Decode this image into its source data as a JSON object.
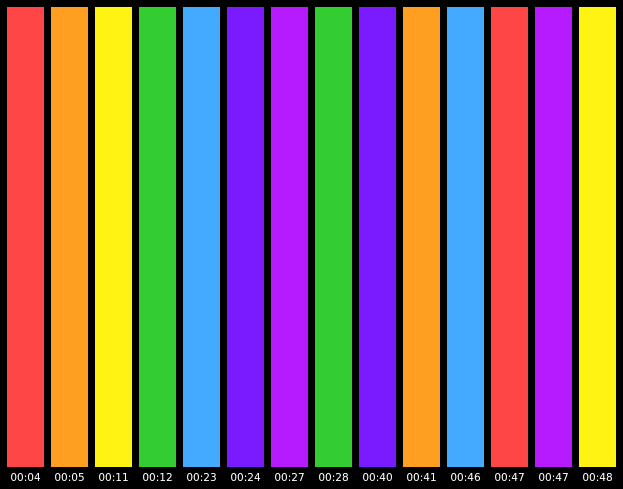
{
  "items": [
    {
      "label": "00:04",
      "color": "#ff4646"
    },
    {
      "label": "00:05",
      "color": "#ff9f22"
    },
    {
      "label": "00:11",
      "color": "#fff314"
    },
    {
      "label": "00:12",
      "color": "#33cc33"
    },
    {
      "label": "00:23",
      "color": "#44aaff"
    },
    {
      "label": "00:24",
      "color": "#7a1aff"
    },
    {
      "label": "00:27",
      "color": "#b61aff"
    },
    {
      "label": "00:28",
      "color": "#33cc33"
    },
    {
      "label": "00:40",
      "color": "#7a1aff"
    },
    {
      "label": "00:41",
      "color": "#ff9f22"
    },
    {
      "label": "00:46",
      "color": "#44aaff"
    },
    {
      "label": "00:47",
      "color": "#ff4646"
    },
    {
      "label": "00:47",
      "color": "#b61aff"
    },
    {
      "label": "00:48",
      "color": "#fff314"
    }
  ]
}
